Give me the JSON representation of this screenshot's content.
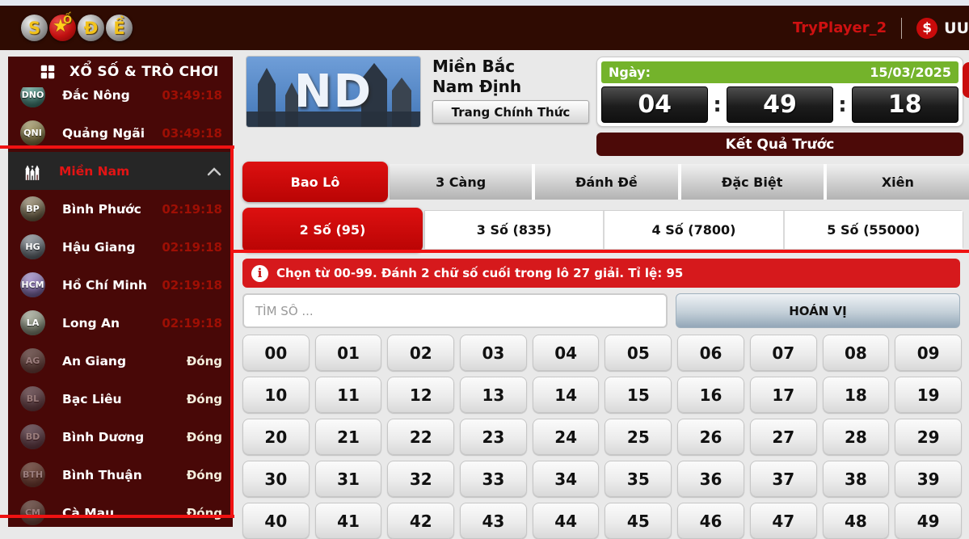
{
  "header": {
    "logo_letters": [
      "S",
      "Ố",
      "Đ",
      "Ề"
    ],
    "logo_star": "★",
    "username": "TryPlayer_2",
    "currency_symbol": "$",
    "currency_label": "UU"
  },
  "sidebar": {
    "title": "XỔ SỐ & TRÒ CHƠI",
    "items": [
      {
        "abbr": "DNO",
        "name": "Đắc Nông",
        "status": "03:49:18",
        "type": "timer",
        "badge_color": "#2e7d6e"
      },
      {
        "abbr": "QNI",
        "name": "Quảng Ngãi",
        "status": "03:49:18",
        "type": "timer",
        "badge_color": "#7d6f2e"
      },
      {
        "abbr": "",
        "name": "Miền Nam",
        "status": "",
        "type": "group",
        "badge_color": ""
      },
      {
        "abbr": "BP",
        "name": "Bình Phước",
        "status": "02:19:18",
        "type": "timer",
        "badge_color": "#6b5a38"
      },
      {
        "abbr": "HG",
        "name": "Hậu Giang",
        "status": "02:19:18",
        "type": "timer",
        "badge_color": "#59626b"
      },
      {
        "abbr": "HCM",
        "name": "Hồ Chí Minh",
        "status": "02:19:18",
        "type": "timer",
        "badge_color": "#7a5fae"
      },
      {
        "abbr": "LA",
        "name": "Long An",
        "status": "02:19:18",
        "type": "timer",
        "badge_color": "#7f876f"
      },
      {
        "abbr": "AG",
        "name": "An Giang",
        "status": "Đóng",
        "type": "closed",
        "badge_color": "#5e6b60"
      },
      {
        "abbr": "BL",
        "name": "Bạc Liêu",
        "status": "Đóng",
        "type": "closed",
        "badge_color": "#5a6775"
      },
      {
        "abbr": "BD",
        "name": "Bình Dương",
        "status": "Đóng",
        "type": "closed",
        "badge_color": "#50627a"
      },
      {
        "abbr": "BTH",
        "name": "Bình Thuận",
        "status": "Đóng",
        "type": "closed",
        "badge_color": "#6e6147"
      },
      {
        "abbr": "CM",
        "name": "Cà Mau",
        "status": "Đóng",
        "type": "closed",
        "badge_color": "#606c58"
      }
    ]
  },
  "banner": {
    "region_code": "ND",
    "title_line1": "Miền Bắc",
    "title_line2": "Nam Định",
    "official_badge": "Trang Chính Thức"
  },
  "draw_panel": {
    "date_label": "Ngày:",
    "date_value": "15/03/2025",
    "countdown": {
      "hours": "04",
      "minutes": "49",
      "seconds": "18",
      "separator": ":"
    },
    "previous_results_button": "Kết Quả Trước"
  },
  "tabs": {
    "main": [
      {
        "label": "Bao Lô",
        "active": true
      },
      {
        "label": "3 Càng",
        "active": false
      },
      {
        "label": "Đánh Đề",
        "active": false
      },
      {
        "label": "Đặc Biệt",
        "active": false
      },
      {
        "label": "Xiên",
        "active": false
      }
    ],
    "sub": [
      {
        "label": "2 Số (95)",
        "active": true
      },
      {
        "label": "3 Số (835)",
        "active": false
      },
      {
        "label": "4 Số (7800)",
        "active": false
      },
      {
        "label": "5 Số (55000)",
        "active": false
      }
    ]
  },
  "bet_panel": {
    "info_icon": "i",
    "info_text": "Chọn từ 00-99. Đánh 2 chữ số cuối trong lô 27 giải. Tỉ lệ: 95",
    "search_placeholder": "TÌM SỐ ...",
    "permute_button": "HOÁN VỊ",
    "numbers": [
      "00",
      "01",
      "02",
      "03",
      "04",
      "05",
      "06",
      "07",
      "08",
      "09",
      "10",
      "11",
      "12",
      "13",
      "14",
      "15",
      "16",
      "17",
      "18",
      "19",
      "20",
      "21",
      "22",
      "23",
      "24",
      "25",
      "26",
      "27",
      "28",
      "29",
      "30",
      "31",
      "32",
      "33",
      "34",
      "35",
      "36",
      "37",
      "38",
      "39",
      "40",
      "41",
      "42",
      "43",
      "44",
      "45",
      "46",
      "47",
      "48",
      "49"
    ]
  },
  "colors": {
    "header_bg": "#2f0b02",
    "sidebar_bg": "#480807",
    "accent_red": "#d6191c",
    "tab_red": "#c90808",
    "green_bar": "#74b32b",
    "timer_text_red": "#9e0f04",
    "annotation_red": "#f01212",
    "maroon_button": "#4c0a08"
  }
}
